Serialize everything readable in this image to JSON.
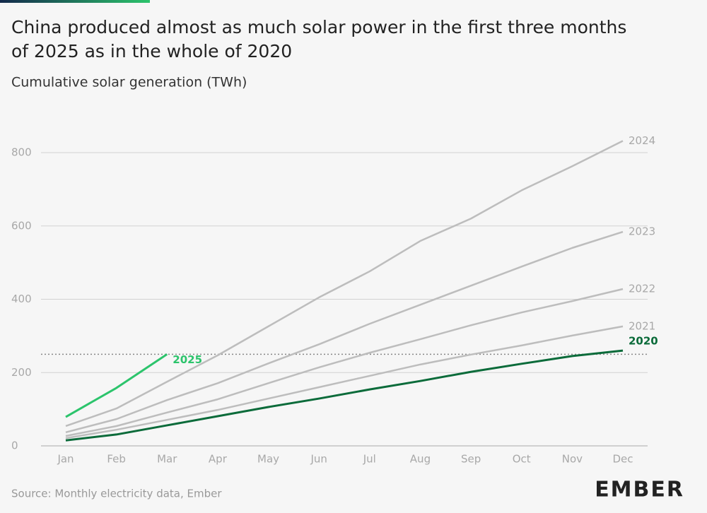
{
  "chart_data": {
    "type": "line",
    "title": [
      "China produced almost as much solar power in the first three months",
      "of 2025 as in the whole of 2020"
    ],
    "subtitle": "Cumulative solar generation (TWh)",
    "source": "Source: Monthly electricity data, Ember",
    "brand": "EMBER",
    "categories": [
      "Jan",
      "Feb",
      "Mar",
      "Apr",
      "May",
      "Jun",
      "Jul",
      "Aug",
      "Sep",
      "Oct",
      "Nov",
      "Dec"
    ],
    "ylim": [
      0,
      800
    ],
    "yticks": [
      0,
      200,
      400,
      600,
      800
    ],
    "grid": true,
    "reference_line": 250,
    "series": [
      {
        "name": "2024",
        "color": "#bdbdbd",
        "values": [
          54,
          102,
          175,
          247,
          326,
          405,
          476,
          559,
          620,
          697,
          763,
          832
        ]
      },
      {
        "name": "2023",
        "color": "#bdbdbd",
        "values": [
          37,
          73,
          125,
          171,
          225,
          277,
          333,
          385,
          437,
          489,
          540,
          584
        ]
      },
      {
        "name": "2022",
        "color": "#bdbdbd",
        "values": [
          27,
          54,
          91,
          127,
          171,
          214,
          254,
          291,
          329,
          364,
          395,
          428
        ]
      },
      {
        "name": "2021",
        "color": "#bdbdbd",
        "values": [
          21,
          44,
          71,
          98,
          129,
          160,
          191,
          222,
          249,
          274,
          301,
          326
        ]
      },
      {
        "name": "2020",
        "color": "#0b6b3a",
        "values": [
          15,
          31,
          56,
          81,
          106,
          129,
          154,
          177,
          202,
          224,
          245,
          260
        ]
      },
      {
        "name": "2025",
        "color": "#2cc46c",
        "values": [
          79,
          158,
          250,
          null,
          null,
          null,
          null,
          null,
          null,
          null,
          null,
          null
        ]
      }
    ]
  }
}
